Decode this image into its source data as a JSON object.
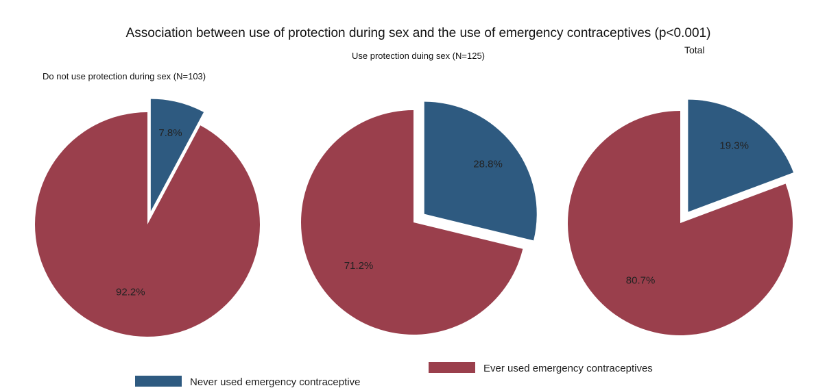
{
  "chart_data": {
    "type": "pie",
    "title": "Association between use of protection during sex and the use of emergency contraceptives (p<0.001)",
    "colors": {
      "never": "#2e5a80",
      "ever": "#9a3f4c"
    },
    "legend": {
      "placement": "bottom",
      "entries": [
        {
          "key": "never",
          "label": "Never used emergency contraceptive"
        },
        {
          "key": "ever",
          "label": "Ever used emergency contraceptives"
        }
      ]
    },
    "pies": [
      {
        "title": "Do not use protection during sex (N=103)",
        "slices": [
          {
            "key": "never",
            "value": 7.8,
            "label": "7.8%",
            "exploded": true
          },
          {
            "key": "ever",
            "value": 92.2,
            "label": "92.2%",
            "exploded": false
          }
        ]
      },
      {
        "title": "Use protection duing sex (N=125)",
        "slices": [
          {
            "key": "never",
            "value": 28.8,
            "label": "28.8%",
            "exploded": true
          },
          {
            "key": "ever",
            "value": 71.2,
            "label": "71.2%",
            "exploded": false
          }
        ]
      },
      {
        "title": "Total",
        "slices": [
          {
            "key": "never",
            "value": 19.3,
            "label": "19.3%",
            "exploded": true
          },
          {
            "key": "ever",
            "value": 80.7,
            "label": "80.7%",
            "exploded": false
          }
        ]
      }
    ]
  }
}
